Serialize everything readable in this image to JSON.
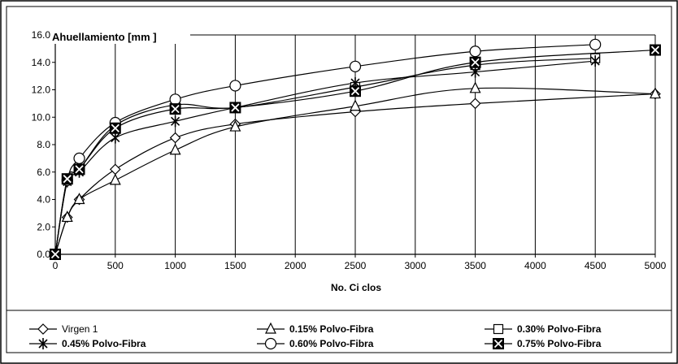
{
  "chart_data": {
    "type": "line",
    "title": "",
    "ylabel": "Ahuellamiento [mm ]",
    "xlabel": "No. Ci clos",
    "xlim": [
      0,
      5000
    ],
    "ylim": [
      0,
      16
    ],
    "x_ticks": [
      0,
      500,
      1000,
      1500,
      2000,
      2500,
      3000,
      3500,
      4000,
      4500,
      5000
    ],
    "y_ticks": [
      0,
      2,
      4,
      6,
      8,
      10,
      12,
      14,
      16
    ],
    "y_tick_labels": [
      "0.0",
      "2.0",
      "4.0",
      "6.0",
      "8.0",
      "10.0",
      "12.0",
      "14.0",
      "16.0"
    ],
    "grid": "vertical",
    "legend_position": "bottom",
    "series": [
      {
        "name": "Virgen 1",
        "marker": "diamond",
        "bold": false,
        "x": [
          0,
          100,
          200,
          500,
          1000,
          1500,
          2500,
          3500,
          5000
        ],
        "y": [
          0.0,
          2.7,
          4.0,
          6.2,
          8.5,
          9.5,
          10.4,
          11.0,
          11.7
        ]
      },
      {
        "name": "0.15% Polvo-Fibra",
        "marker": "triangle",
        "bold": true,
        "x": [
          0,
          100,
          200,
          500,
          1000,
          1500,
          2500,
          3500,
          5000
        ],
        "y": [
          0.0,
          2.7,
          4.0,
          5.4,
          7.6,
          9.3,
          10.8,
          12.1,
          11.7
        ]
      },
      {
        "name": "0.30% Polvo-Fibra",
        "marker": "square",
        "bold": true,
        "x": [
          0,
          100,
          200,
          500,
          1000,
          1500,
          2500,
          3500,
          4500
        ],
        "y": [
          0.0,
          5.5,
          6.2,
          9.4,
          10.9,
          10.7,
          12.2,
          13.8,
          14.3
        ]
      },
      {
        "name": "0.45% Polvo-Fibra",
        "marker": "star",
        "bold": true,
        "x": [
          0,
          100,
          200,
          500,
          1000,
          1500,
          2500,
          3500,
          4500
        ],
        "y": [
          0.0,
          5.3,
          6.0,
          8.5,
          9.7,
          10.7,
          12.5,
          13.3,
          14.1
        ]
      },
      {
        "name": "0.60% Polvo-Fibra",
        "marker": "circle",
        "bold": true,
        "x": [
          0,
          100,
          200,
          500,
          1000,
          1500,
          2500,
          3500,
          4500
        ],
        "y": [
          0.0,
          5.4,
          7.0,
          9.6,
          11.3,
          12.3,
          13.7,
          14.8,
          15.3
        ]
      },
      {
        "name": "0.75% Polvo-Fibra",
        "marker": "xsquare",
        "bold": true,
        "x": [
          0,
          100,
          200,
          500,
          1000,
          1500,
          2500,
          3500,
          5000
        ],
        "y": [
          0.0,
          5.5,
          6.2,
          9.2,
          10.6,
          10.7,
          11.9,
          14.0,
          14.9
        ]
      }
    ]
  }
}
